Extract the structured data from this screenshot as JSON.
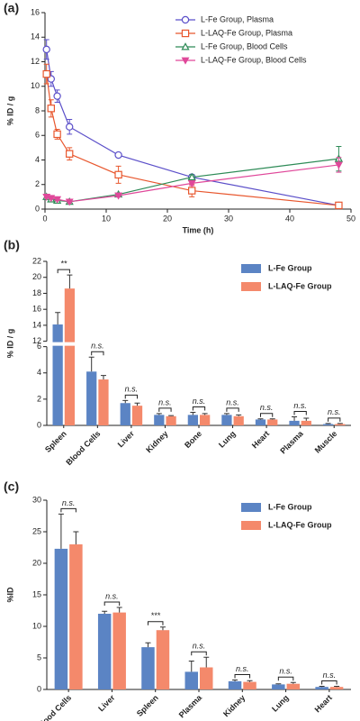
{
  "chart_data": [
    {
      "type": "line",
      "panel_label": "(a)",
      "x_label": "Time (h)",
      "y_label": "% ID / g",
      "x": [
        0.25,
        1,
        2,
        4,
        12,
        24,
        48
      ],
      "series": [
        {
          "name": "L-Fe Group, Plasma",
          "color": "#5b4fc9",
          "marker": "circle",
          "values": [
            13.0,
            10.6,
            9.2,
            6.7,
            4.4,
            2.6,
            0.3
          ],
          "errors": [
            0.8,
            0.6,
            0.5,
            0.6,
            0.1,
            0.2,
            0.1
          ]
        },
        {
          "name": "L-LAQ-Fe Group, Plasma",
          "color": "#e8572e",
          "marker": "square",
          "values": [
            11.0,
            8.2,
            6.1,
            4.5,
            2.8,
            1.5,
            0.3
          ],
          "errors": [
            0.8,
            0.7,
            0.4,
            0.5,
            0.7,
            0.5,
            0.1
          ]
        },
        {
          "name": "L-Fe Group, Blood Cells",
          "color": "#2e8b57",
          "marker": "triangle",
          "values": [
            1.0,
            0.8,
            0.7,
            0.6,
            1.2,
            2.6,
            4.1
          ],
          "errors": [
            0.2,
            0.1,
            0.1,
            0.1,
            0.1,
            0.2,
            1.0
          ]
        },
        {
          "name": "L-LAQ-Fe Group, Blood Cells",
          "color": "#e0489a",
          "marker": "triangle-down",
          "values": [
            1.0,
            0.9,
            0.8,
            0.6,
            1.1,
            2.1,
            3.6
          ],
          "errors": [
            0.1,
            0.1,
            0.1,
            0.1,
            0.1,
            0.2,
            0.6
          ]
        }
      ],
      "xlim": [
        0,
        50
      ],
      "xticks": [
        0,
        10,
        20,
        30,
        40,
        50
      ],
      "ylim": [
        0,
        16
      ],
      "yticks": [
        0,
        2,
        4,
        6,
        8,
        10,
        12,
        14,
        16
      ],
      "legend": "upper right"
    },
    {
      "type": "bar",
      "panel_label": "(b)",
      "y_label": "% ID / g",
      "categories": [
        "Spleen",
        "Blood Cells",
        "Liver",
        "Kidney",
        "Bone",
        "Lung",
        "Heart",
        "Plasma",
        "Muscle"
      ],
      "series": [
        {
          "name": "L-Fe Group",
          "color": "#5b84c4",
          "values": [
            14.1,
            4.1,
            1.7,
            0.8,
            0.8,
            0.8,
            0.45,
            0.35,
            0.1
          ],
          "errors": [
            1.5,
            1.1,
            0.2,
            0.1,
            0.2,
            0.1,
            0.05,
            0.3,
            0.05
          ]
        },
        {
          "name": "L-LAQ-Fe Group",
          "color": "#f4896b",
          "values": [
            18.6,
            3.5,
            1.5,
            0.7,
            0.8,
            0.7,
            0.45,
            0.35,
            0.1
          ],
          "errors": [
            1.7,
            0.3,
            0.2,
            0.05,
            0.1,
            0.1,
            0.05,
            0.2,
            0.05
          ]
        }
      ],
      "annotations": [
        "**",
        "n.s.",
        "n.s.",
        "n.s.",
        "n.s.",
        "n.s.",
        "n.s.",
        "n.s.",
        "n.s."
      ],
      "ylim": [
        0,
        22
      ],
      "ybreak": [
        6,
        12
      ],
      "yticks": [
        0,
        2,
        4,
        6,
        12,
        14,
        16,
        18,
        20,
        22
      ],
      "legend": "upper right"
    },
    {
      "type": "bar",
      "panel_label": "(c)",
      "y_label": "%ID",
      "categories": [
        "Blood Cells",
        "Liver",
        "Spleen",
        "Plasma",
        "Kidney",
        "Lung",
        "Heart"
      ],
      "series": [
        {
          "name": "L-Fe Group",
          "color": "#5b84c4",
          "values": [
            22.3,
            12.0,
            6.7,
            2.8,
            1.3,
            0.8,
            0.4
          ],
          "errors": [
            5.5,
            0.4,
            0.7,
            1.7,
            0.2,
            0.1,
            0.1
          ]
        },
        {
          "name": "L-LAQ-Fe Group",
          "color": "#f4896b",
          "values": [
            23.0,
            12.2,
            9.4,
            3.5,
            1.2,
            0.9,
            0.4
          ],
          "errors": [
            2.0,
            0.8,
            0.5,
            1.6,
            0.2,
            0.2,
            0.1
          ]
        }
      ],
      "annotations": [
        "n.s.",
        "n.s.",
        "***",
        "n.s.",
        "n.s.",
        "n.s.",
        "n.s."
      ],
      "ylim": [
        0,
        30
      ],
      "yticks": [
        0,
        5,
        10,
        15,
        20,
        25,
        30
      ],
      "legend": "upper right"
    }
  ]
}
